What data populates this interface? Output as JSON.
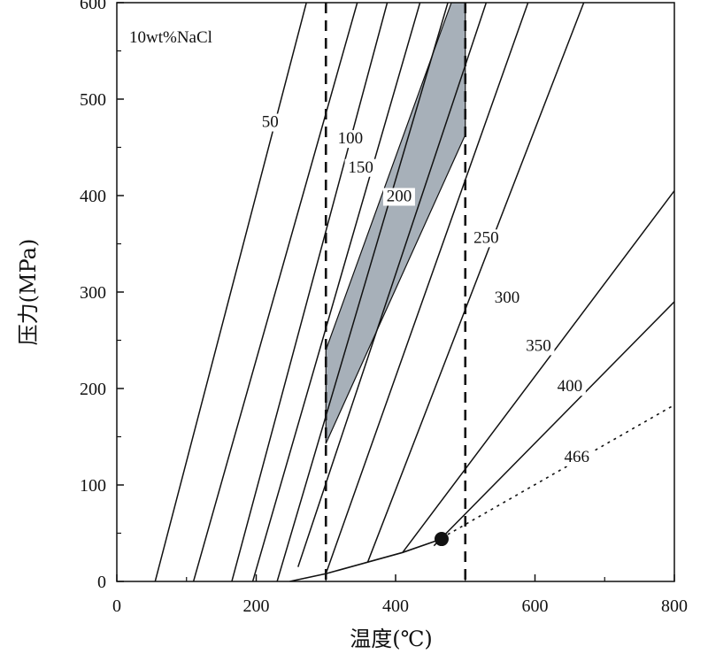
{
  "chart_data": {
    "type": "line",
    "title": "",
    "annotation": "10wt%NaCl",
    "xlabel": "温度(℃)",
    "ylabel": "压力(MPa)",
    "xlim": [
      0,
      800
    ],
    "ylim": [
      0,
      600
    ],
    "xticks": [
      "0",
      "200",
      "400",
      "600",
      "800"
    ],
    "yticks": [
      "0",
      "100",
      "200",
      "300",
      "400",
      "500",
      "600"
    ],
    "grid": false,
    "colors": {
      "line": "#111111",
      "shade": "#a7b0b9"
    },
    "isochores": [
      {
        "label": "50",
        "points": [
          [
            55,
            0
          ],
          [
            272,
            600
          ]
        ]
      },
      {
        "label": "100",
        "points": [
          [
            110,
            0
          ],
          [
            345,
            600
          ]
        ]
      },
      {
        "label": "150",
        "points": [
          [
            165,
            0
          ],
          [
            388,
            600
          ]
        ]
      },
      {
        "label": "200",
        "points": [
          [
            195,
            0
          ],
          [
            435,
            600
          ]
        ]
      },
      {
        "label": "",
        "points": [
          [
            230,
            0
          ],
          [
            475,
            600
          ]
        ]
      },
      {
        "label": "",
        "points": [
          [
            260,
            15
          ],
          [
            530,
            600
          ]
        ]
      },
      {
        "label": "250",
        "points": [
          [
            300,
            8
          ],
          [
            590,
            600
          ]
        ]
      },
      {
        "label": "300",
        "points": [
          [
            360,
            20
          ],
          [
            670,
            600
          ]
        ]
      },
      {
        "label": "350",
        "points": [
          [
            410,
            30
          ],
          [
            800,
            405
          ]
        ]
      },
      {
        "label": "400",
        "points": [
          [
            455,
            37
          ],
          [
            800,
            290
          ]
        ]
      },
      {
        "label": "466",
        "points": [
          [
            466,
            45
          ],
          [
            800,
            183
          ]
        ],
        "style": "dotted"
      }
    ],
    "saturation_curve": {
      "points": [
        [
          248,
          0
        ],
        [
          300,
          8
        ],
        [
          360,
          20
        ],
        [
          410,
          30
        ],
        [
          466,
          44
        ]
      ]
    },
    "critical_point": {
      "x": 466,
      "y": 44
    },
    "temperature_bounds": [
      300,
      500
    ],
    "shaded_region": {
      "points": [
        [
          300,
          143
        ],
        [
          500,
          463
        ],
        [
          500,
          600
        ],
        [
          480,
          600
        ],
        [
          300,
          240
        ]
      ]
    }
  }
}
